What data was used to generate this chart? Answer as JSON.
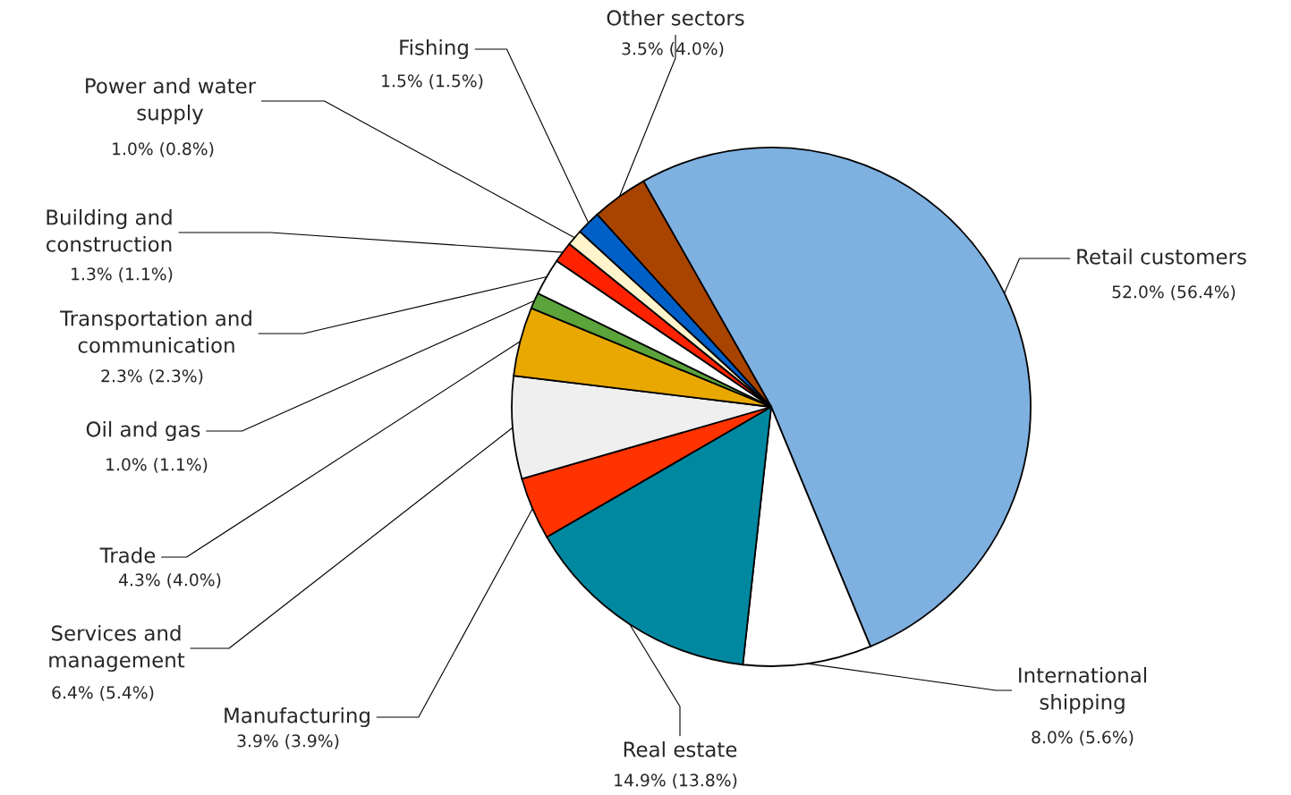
{
  "chart_data": {
    "type": "pie",
    "categories": [
      "Retail customers",
      "International\nshipping",
      "Real estate",
      "Manufacturing",
      "Services and\nmanagement",
      "Trade",
      "Oil and gas",
      "Transportation and\ncommunication",
      "Building and\nconstruction",
      "Power and water\nsupply",
      "Fishing",
      "Other sectors"
    ],
    "values": [
      52.0,
      8.0,
      14.9,
      3.9,
      6.4,
      4.3,
      1.0,
      2.3,
      1.3,
      1.0,
      1.5,
      3.5
    ],
    "value_labels": [
      "52.0% (56.4%)",
      "8.0% (5.6%)",
      "14.9% (13.8%)",
      "3.9% (3.9%)",
      "6.4% (5.4%)",
      "4.3% (4.0%)",
      "1.0% (1.1%)",
      "2.3% (2.3%)",
      "1.3% (1.1%)",
      "1.0% (0.8%)",
      "1.5% (1.5%)",
      "3.5% (4.0%)"
    ],
    "colors": [
      "#7eb0e0",
      "#ffffff",
      "#0088a0",
      "#ff3300",
      "#efefef",
      "#e8a800",
      "#5ba33b",
      "#ffffff",
      "#ff2200",
      "#fff4cc",
      "#0060c8",
      "#a84400"
    ]
  }
}
